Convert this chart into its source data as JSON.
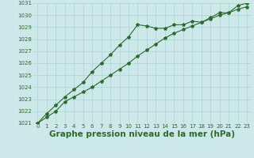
{
  "title": "Graphe pression niveau de la mer (hPa)",
  "x_hours": [
    0,
    1,
    2,
    3,
    4,
    5,
    6,
    7,
    8,
    9,
    10,
    11,
    12,
    13,
    14,
    15,
    16,
    17,
    18,
    19,
    20,
    21,
    22,
    23
  ],
  "line1": [
    1021.0,
    1021.8,
    1022.5,
    1023.2,
    1023.8,
    1024.4,
    1025.3,
    1026.0,
    1026.7,
    1027.5,
    1028.2,
    1029.2,
    1029.1,
    1028.9,
    1028.9,
    1029.2,
    1029.2,
    1029.5,
    1029.4,
    1029.8,
    1030.2,
    1030.2,
    1030.8,
    1031.0
  ],
  "line2": [
    1021.0,
    1021.5,
    1022.0,
    1022.8,
    1023.2,
    1023.6,
    1024.0,
    1024.5,
    1025.0,
    1025.5,
    1026.0,
    1026.6,
    1027.1,
    1027.6,
    1028.1,
    1028.5,
    1028.8,
    1029.1,
    1029.4,
    1029.7,
    1030.0,
    1030.2,
    1030.5,
    1030.7
  ],
  "ylim": [
    1021,
    1031
  ],
  "yticks": [
    1021,
    1022,
    1023,
    1024,
    1025,
    1026,
    1027,
    1028,
    1029,
    1030,
    1031
  ],
  "bg_color": "#cce8e8",
  "grid_color": "#aad4d4",
  "line_color": "#2d6b2d",
  "marker": "*",
  "marker_size": 3,
  "title_fontsize": 7.5,
  "tick_fontsize": 5.0
}
